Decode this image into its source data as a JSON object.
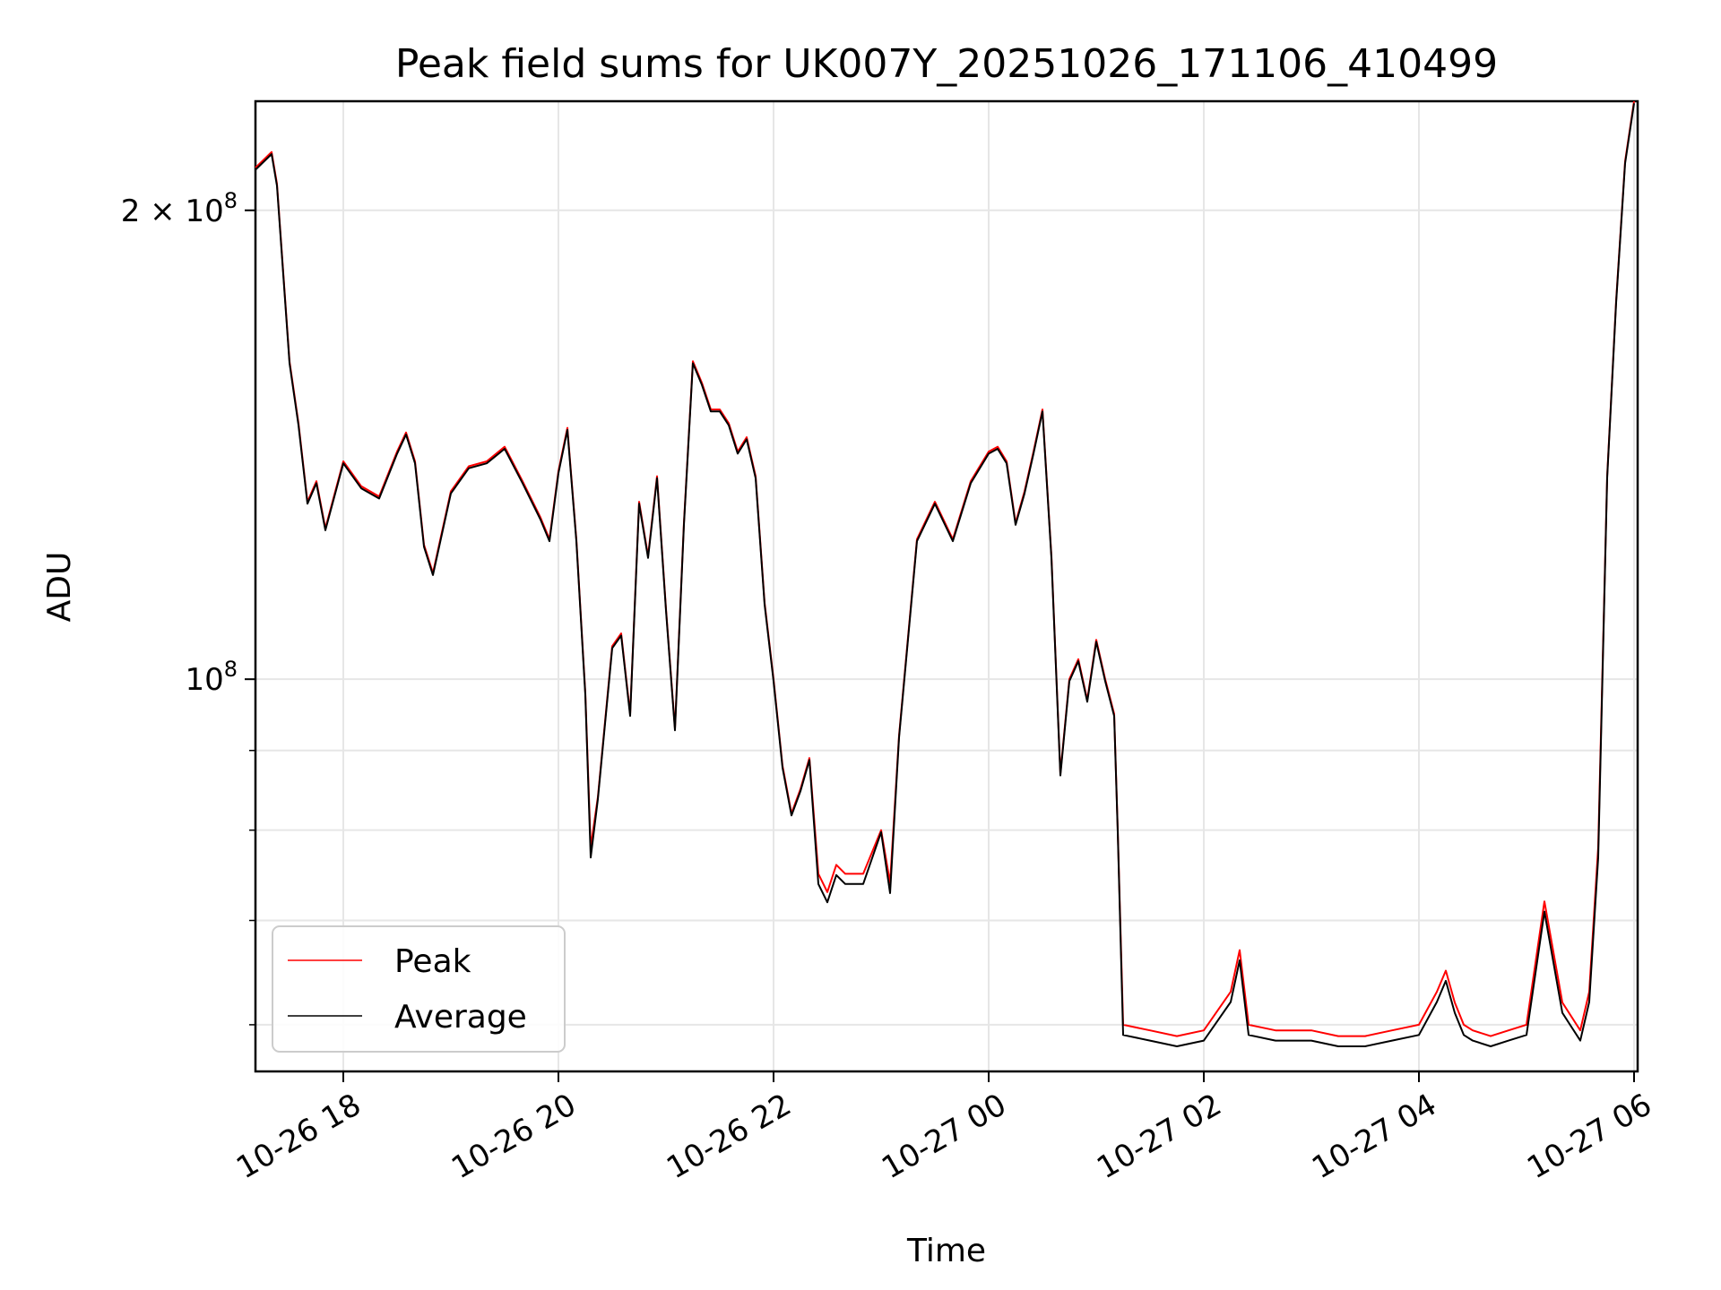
{
  "chart_data": {
    "type": "line",
    "title": "Peak field sums for UK007Y_20251026_171106_410499",
    "xlabel": "Time",
    "ylabel": "ADU",
    "y_scale": "log",
    "grid": true,
    "legend_placement": "lower-left",
    "xlim": [
      "2025-10-26 17:11",
      "2025-10-27 06:02"
    ],
    "ylim": [
      56000000,
      235000000
    ],
    "x_ticks": [
      "10-26 18",
      "10-26 20",
      "10-26 22",
      "10-27 00",
      "10-27 02",
      "10-27 04",
      "10-27 06"
    ],
    "y_ticks": [
      {
        "value": 100000000,
        "mantissa": "",
        "base": "10",
        "exp": "8"
      },
      {
        "value": 200000000,
        "mantissa": "2 × ",
        "base": "10",
        "exp": "8"
      }
    ],
    "series": [
      {
        "name": "Peak",
        "color": "#ff0000",
        "points": [
          [
            "2025-10-26 17:11",
            213000000
          ],
          [
            "2025-10-26 17:20",
            218000000
          ],
          [
            "2025-10-26 17:23",
            208000000
          ],
          [
            "2025-10-26 17:30",
            160000000
          ],
          [
            "2025-10-26 17:35",
            146000000
          ],
          [
            "2025-10-26 17:40",
            130000000
          ],
          [
            "2025-10-26 17:45",
            134000000
          ],
          [
            "2025-10-26 17:50",
            125000000
          ],
          [
            "2025-10-26 18:00",
            138000000
          ],
          [
            "2025-10-26 18:10",
            133000000
          ],
          [
            "2025-10-26 18:20",
            131000000
          ],
          [
            "2025-10-26 18:30",
            140000000
          ],
          [
            "2025-10-26 18:35",
            144000000
          ],
          [
            "2025-10-26 18:40",
            138000000
          ],
          [
            "2025-10-26 18:45",
            122000000
          ],
          [
            "2025-10-26 18:50",
            117000000
          ],
          [
            "2025-10-26 19:00",
            132000000
          ],
          [
            "2025-10-26 19:10",
            137000000
          ],
          [
            "2025-10-26 19:20",
            138000000
          ],
          [
            "2025-10-26 19:30",
            141000000
          ],
          [
            "2025-10-26 19:40",
            134000000
          ],
          [
            "2025-10-26 19:50",
            127000000
          ],
          [
            "2025-10-26 19:55",
            123000000
          ],
          [
            "2025-10-26 20:00",
            136000000
          ],
          [
            "2025-10-26 20:05",
            145000000
          ],
          [
            "2025-10-26 20:10",
            123000000
          ],
          [
            "2025-10-26 20:15",
            98000000
          ],
          [
            "2025-10-26 20:18",
            78000000
          ],
          [
            "2025-10-26 20:22",
            84000000
          ],
          [
            "2025-10-26 20:30",
            105000000
          ],
          [
            "2025-10-26 20:35",
            107000000
          ],
          [
            "2025-10-26 20:40",
            95000000
          ],
          [
            "2025-10-26 20:45",
            130000000
          ],
          [
            "2025-10-26 20:50",
            120000000
          ],
          [
            "2025-10-26 20:55",
            135000000
          ],
          [
            "2025-10-26 21:00",
            111000000
          ],
          [
            "2025-10-26 21:05",
            93000000
          ],
          [
            "2025-10-26 21:10",
            126000000
          ],
          [
            "2025-10-26 21:15",
            160000000
          ],
          [
            "2025-10-26 21:20",
            155000000
          ],
          [
            "2025-10-26 21:25",
            149000000
          ],
          [
            "2025-10-26 21:30",
            149000000
          ],
          [
            "2025-10-26 21:35",
            146000000
          ],
          [
            "2025-10-26 21:40",
            140000000
          ],
          [
            "2025-10-26 21:45",
            143000000
          ],
          [
            "2025-10-26 21:50",
            135000000
          ],
          [
            "2025-10-26 21:55",
            112000000
          ],
          [
            "2025-10-26 22:00",
            100000000
          ],
          [
            "2025-10-26 22:05",
            88000000
          ],
          [
            "2025-10-26 22:10",
            82000000
          ],
          [
            "2025-10-26 22:15",
            85000000
          ],
          [
            "2025-10-26 22:20",
            89000000
          ],
          [
            "2025-10-26 22:25",
            75000000
          ],
          [
            "2025-10-26 22:30",
            73000000
          ],
          [
            "2025-10-26 22:35",
            76000000
          ],
          [
            "2025-10-26 22:40",
            75000000
          ],
          [
            "2025-10-26 22:50",
            75000000
          ],
          [
            "2025-10-26 23:00",
            80000000
          ],
          [
            "2025-10-26 23:05",
            74000000
          ],
          [
            "2025-10-26 23:10",
            92000000
          ],
          [
            "2025-10-26 23:20",
            123000000
          ],
          [
            "2025-10-26 23:30",
            130000000
          ],
          [
            "2025-10-26 23:40",
            123000000
          ],
          [
            "2025-10-26 23:50",
            134000000
          ],
          [
            "2025-10-27 00:00",
            140000000
          ],
          [
            "2025-10-27 00:05",
            141000000
          ],
          [
            "2025-10-27 00:10",
            138000000
          ],
          [
            "2025-10-27 00:15",
            126000000
          ],
          [
            "2025-10-27 00:20",
            132000000
          ],
          [
            "2025-10-27 00:25",
            140000000
          ],
          [
            "2025-10-27 00:30",
            149000000
          ],
          [
            "2025-10-27 00:35",
            120000000
          ],
          [
            "2025-10-27 00:40",
            87000000
          ],
          [
            "2025-10-27 00:45",
            100000000
          ],
          [
            "2025-10-27 00:50",
            103000000
          ],
          [
            "2025-10-27 00:55",
            97000000
          ],
          [
            "2025-10-27 01:00",
            106000000
          ],
          [
            "2025-10-27 01:05",
            100000000
          ],
          [
            "2025-10-27 01:10",
            95000000
          ],
          [
            "2025-10-27 01:12",
            80000000
          ],
          [
            "2025-10-27 01:15",
            60000000
          ],
          [
            "2025-10-27 01:30",
            59500000
          ],
          [
            "2025-10-27 01:45",
            59000000
          ],
          [
            "2025-10-27 02:00",
            59500000
          ],
          [
            "2025-10-27 02:15",
            63000000
          ],
          [
            "2025-10-27 02:20",
            67000000
          ],
          [
            "2025-10-27 02:25",
            60000000
          ],
          [
            "2025-10-27 02:40",
            59500000
          ],
          [
            "2025-10-27 03:00",
            59500000
          ],
          [
            "2025-10-27 03:15",
            59000000
          ],
          [
            "2025-10-27 03:30",
            59000000
          ],
          [
            "2025-10-27 03:45",
            59500000
          ],
          [
            "2025-10-27 04:00",
            60000000
          ],
          [
            "2025-10-27 04:10",
            63000000
          ],
          [
            "2025-10-27 04:15",
            65000000
          ],
          [
            "2025-10-27 04:20",
            62000000
          ],
          [
            "2025-10-27 04:25",
            60000000
          ],
          [
            "2025-10-27 04:30",
            59500000
          ],
          [
            "2025-10-27 04:40",
            59000000
          ],
          [
            "2025-10-27 04:50",
            59500000
          ],
          [
            "2025-10-27 05:00",
            60000000
          ],
          [
            "2025-10-27 05:10",
            72000000
          ],
          [
            "2025-10-27 05:20",
            62000000
          ],
          [
            "2025-10-27 05:30",
            59500000
          ],
          [
            "2025-10-27 05:35",
            63000000
          ],
          [
            "2025-10-27 05:40",
            78000000
          ],
          [
            "2025-10-27 05:45",
            135000000
          ],
          [
            "2025-10-27 05:50",
            175000000
          ],
          [
            "2025-10-27 05:55",
            215000000
          ],
          [
            "2025-10-27 06:00",
            235000000
          ]
        ]
      },
      {
        "name": "Average",
        "color": "#000000",
        "points": []
      }
    ]
  }
}
